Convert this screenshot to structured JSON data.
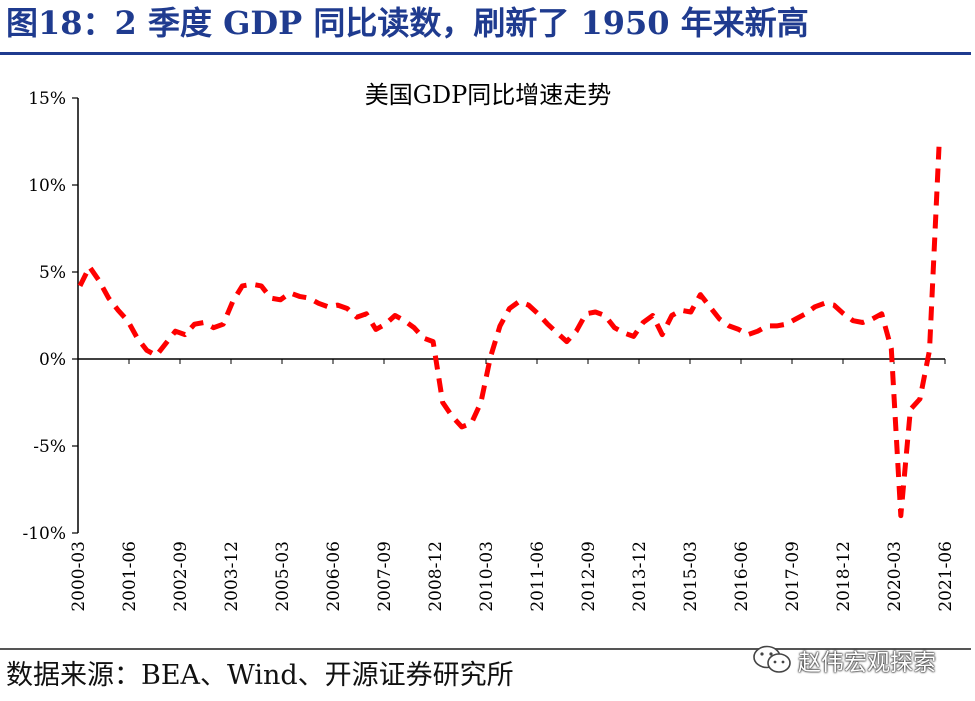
{
  "header": {
    "figure_title": "图18：2 季度 GDP 同比读数，刷新了 1950 年来新高"
  },
  "footer": {
    "source": "数据来源：BEA、Wind、开源证券研究所",
    "watermark": "赵伟宏观探索"
  },
  "colors": {
    "title": "#1f3b8f",
    "series": "#ff0000",
    "axis": "#000000"
  },
  "chart_data": {
    "type": "line",
    "title": "美国GDP同比增速走势",
    "xlabel": "",
    "ylabel": "",
    "ylim": [
      -0.1,
      0.15
    ],
    "yticks": [
      -0.1,
      -0.05,
      0.0,
      0.05,
      0.1,
      0.15
    ],
    "ytick_labels": [
      "-10%",
      "-5%",
      "0%",
      "5%",
      "10%",
      "15%"
    ],
    "xtick_labels": [
      "2000-03",
      "2001-06",
      "2002-09",
      "2003-12",
      "2005-03",
      "2006-06",
      "2007-09",
      "2008-12",
      "2010-03",
      "2011-06",
      "2012-09",
      "2013-12",
      "2015-03",
      "2016-06",
      "2017-09",
      "2018-12",
      "2020-03",
      "2021-06"
    ],
    "grid": false,
    "legend": "none",
    "series": [
      {
        "name": "美国GDP同比增速",
        "style": "dashed",
        "values": [
          0.042,
          0.053,
          0.045,
          0.035,
          0.028,
          0.022,
          0.012,
          0.005,
          0.002,
          0.009,
          0.016,
          0.014,
          0.02,
          0.021,
          0.018,
          0.02,
          0.033,
          0.042,
          0.043,
          0.042,
          0.035,
          0.034,
          0.038,
          0.036,
          0.035,
          0.032,
          0.03,
          0.031,
          0.029,
          0.024,
          0.026,
          0.017,
          0.02,
          0.025,
          0.022,
          0.018,
          0.012,
          0.01,
          -0.025,
          -0.033,
          -0.039,
          -0.037,
          -0.025,
          0.001,
          0.019,
          0.029,
          0.033,
          0.031,
          0.026,
          0.02,
          0.015,
          0.01,
          0.016,
          0.026,
          0.027,
          0.025,
          0.018,
          0.015,
          0.013,
          0.021,
          0.025,
          0.014,
          0.025,
          0.028,
          0.027,
          0.037,
          0.03,
          0.023,
          0.019,
          0.017,
          0.014,
          0.016,
          0.019,
          0.019,
          0.02,
          0.023,
          0.026,
          0.03,
          0.032,
          0.031,
          0.026,
          0.022,
          0.021,
          0.023,
          0.026,
          0.006,
          -0.09,
          -0.029,
          -0.023,
          0.005,
          0.122
        ]
      }
    ]
  }
}
